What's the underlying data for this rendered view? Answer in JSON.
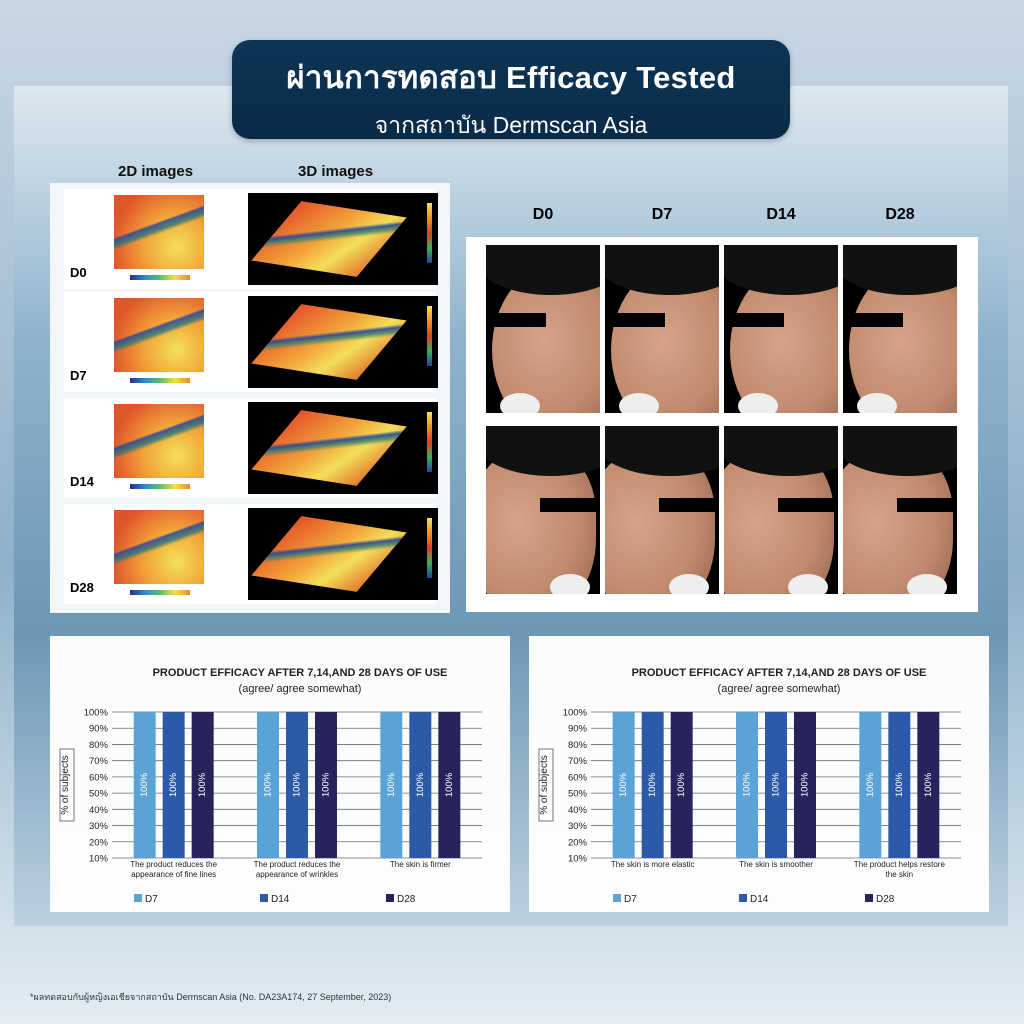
{
  "header": {
    "line1": "ผ่านการทดสอบ Efficacy Tested",
    "line2": "จากสถาบัน Dermscan Asia"
  },
  "scans": {
    "col_2d": "2D images",
    "col_3d": "3D images",
    "days": [
      "D0",
      "D7",
      "D14",
      "D28"
    ]
  },
  "photos": {
    "days": [
      "D0",
      "D7",
      "D14",
      "D28"
    ]
  },
  "footnote": "*ผลทดสอบกับผู้หญิงเอเชียจากสถาบัน Dermscan Asia (No. DA23A174, 27 September, 2023)",
  "colors": {
    "D7": "#5ba3d6",
    "D14": "#2c5aa8",
    "D28": "#27235c"
  },
  "chart_data": [
    {
      "type": "bar",
      "title": "PRODUCT EFFICACY AFTER 7,14,AND 28 DAYS OF USE",
      "subtitle": "(agree/ agree somewhat)",
      "ylabel": "% of subjects",
      "ylim": [
        10,
        100
      ],
      "yticks": [
        "100%",
        "90%",
        "80%",
        "70%",
        "60%",
        "50%",
        "40%",
        "30%",
        "20%",
        "10%"
      ],
      "categories": [
        [
          "The product reduces the",
          "appearance of fine lines"
        ],
        [
          "The product reduces the",
          "appearance of wrinkles"
        ],
        [
          "The skin is firmer"
        ]
      ],
      "series": [
        {
          "name": "D7",
          "values": [
            100,
            100,
            100
          ],
          "labels": [
            "100%",
            "100%",
            "100%"
          ]
        },
        {
          "name": "D14",
          "values": [
            100,
            100,
            100
          ],
          "labels": [
            "100%",
            "100%",
            "100%"
          ]
        },
        {
          "name": "D28",
          "values": [
            100,
            100,
            100
          ],
          "labels": [
            "100%",
            "100%",
            "100%"
          ]
        }
      ],
      "legend_position": "bottom"
    },
    {
      "type": "bar",
      "title": "PRODUCT EFFICACY AFTER 7,14,AND 28 DAYS OF USE",
      "subtitle": "(agree/ agree somewhat)",
      "ylabel": "% of subjects",
      "ylim": [
        10,
        100
      ],
      "yticks": [
        "100%",
        "90%",
        "80%",
        "70%",
        "60%",
        "50%",
        "40%",
        "30%",
        "20%",
        "10%"
      ],
      "categories": [
        [
          "The skin is more elastic"
        ],
        [
          "The skin is smoother"
        ],
        [
          "The product helps restore",
          "the skin"
        ]
      ],
      "series": [
        {
          "name": "D7",
          "values": [
            100,
            100,
            100
          ],
          "labels": [
            "100%",
            "100%",
            "100%"
          ]
        },
        {
          "name": "D14",
          "values": [
            100,
            100,
            100
          ],
          "labels": [
            "100%",
            "100%",
            "100%"
          ]
        },
        {
          "name": "D28",
          "values": [
            100,
            100,
            100
          ],
          "labels": [
            "100%",
            "100%",
            "100%"
          ]
        }
      ],
      "legend_position": "bottom"
    }
  ]
}
